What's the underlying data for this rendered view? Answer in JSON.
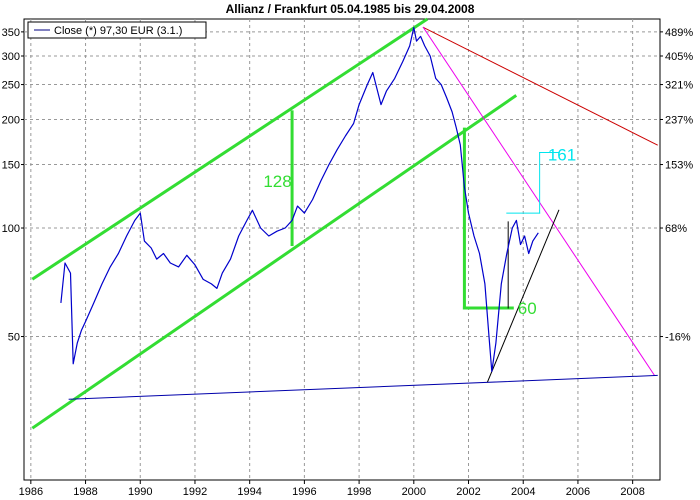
{
  "chart_data": {
    "type": "line",
    "title": "Allianz / Frankfurt 05.04.1985 bis 29.04.2008",
    "xlabel": "",
    "ylabel": "",
    "x_range": [
      1985.75,
      2009.0
    ],
    "ylim": [
      20,
      380
    ],
    "y_scale": "log",
    "x_ticks": [
      1986,
      1988,
      1990,
      1992,
      1994,
      1996,
      1998,
      2000,
      2002,
      2004,
      2006,
      2008
    ],
    "y_ticks_left": [
      50,
      100,
      150,
      200,
      250,
      300,
      350
    ],
    "y_ticks_right": [
      {
        "label": "489%",
        "value": 350
      },
      {
        "label": "405%",
        "value": 300
      },
      {
        "label": "321%",
        "value": 250
      },
      {
        "label": "237%",
        "value": 200
      },
      {
        "label": "153%",
        "value": 150
      },
      {
        "label": "68%",
        "value": 100
      },
      {
        "label": "-16%",
        "value": 50
      }
    ],
    "grid": true,
    "legend": {
      "position": "top-left",
      "entries": [
        {
          "label": "Close (*) 97,30 EUR (3.1.)",
          "color": "#000080"
        }
      ]
    },
    "colors": {
      "price": "#0000cc",
      "channel": "#33dd33",
      "trend_red": "#cc0000",
      "trend_magenta": "#ee00ee",
      "support_blue": "#0000aa",
      "cyan": "#00e5ee",
      "black": "#000000"
    },
    "series": [
      {
        "name": "Close (*) 97,30 EUR (3.1.)",
        "x": [
          1987.1,
          1987.25,
          1987.45,
          1987.55,
          1987.7,
          1987.85,
          1988.0,
          1988.3,
          1988.6,
          1988.9,
          1989.2,
          1989.5,
          1989.8,
          1990.0,
          1990.15,
          1990.4,
          1990.6,
          1990.85,
          1991.1,
          1991.4,
          1991.7,
          1992.0,
          1992.3,
          1992.6,
          1992.8,
          1993.0,
          1993.3,
          1993.6,
          1993.9,
          1994.1,
          1994.4,
          1994.7,
          1995.0,
          1995.3,
          1995.55,
          1995.75,
          1996.0,
          1996.3,
          1996.6,
          1996.9,
          1997.2,
          1997.5,
          1997.8,
          1998.0,
          1998.3,
          1998.5,
          1998.8,
          1999.0,
          1999.3,
          1999.6,
          1999.85,
          2000.0,
          2000.1,
          2000.25,
          2000.4,
          2000.6,
          2000.8,
          2001.0,
          2001.2,
          2001.4,
          2001.55,
          2001.7,
          2001.85,
          2002.0,
          2002.2,
          2002.4,
          2002.6,
          2002.75,
          2002.85,
          2003.0,
          2003.2,
          2003.4,
          2003.6,
          2003.75,
          2003.9,
          2004.05,
          2004.2,
          2004.35,
          2004.55
        ],
        "values": [
          62,
          80,
          75,
          42,
          48,
          52,
          55,
          62,
          70,
          78,
          85,
          95,
          105,
          110,
          92,
          88,
          82,
          85,
          80,
          78,
          84,
          79,
          72,
          70,
          68,
          75,
          82,
          95,
          105,
          112,
          100,
          95,
          98,
          100,
          105,
          115,
          110,
          120,
          135,
          150,
          165,
          180,
          195,
          220,
          250,
          270,
          220,
          240,
          260,
          290,
          320,
          360,
          330,
          340,
          320,
          300,
          260,
          250,
          230,
          210,
          190,
          170,
          130,
          110,
          95,
          85,
          70,
          50,
          40,
          48,
          70,
          85,
          100,
          105,
          90,
          95,
          85,
          92,
          97
        ]
      }
    ],
    "annotations": [
      {
        "text": "128",
        "x": 1994.5,
        "y": 135,
        "color": "#33dd33"
      },
      {
        "text": "60",
        "x": 2003.8,
        "y": 60,
        "color": "#33dd33"
      },
      {
        "text": "161",
        "x": 2004.9,
        "y": 160,
        "color": "#00e5ee"
      }
    ],
    "lines": [
      {
        "name": "channel-upper",
        "color": "#33dd33",
        "width": 3,
        "points": [
          [
            1986.1,
            72.5
          ],
          [
            2000.45,
            378
          ]
        ]
      },
      {
        "name": "channel-lower",
        "color": "#33dd33",
        "width": 3,
        "points": [
          [
            1986.1,
            28
          ],
          [
            2003.7,
            232
          ]
        ]
      },
      {
        "name": "channel-vertical",
        "color": "#33dd33",
        "width": 3,
        "points": [
          [
            1995.55,
            90
          ],
          [
            1995.55,
            210
          ]
        ]
      },
      {
        "name": "drop-vertical",
        "color": "#33dd33",
        "width": 3,
        "points": [
          [
            2001.85,
            188
          ],
          [
            2001.85,
            60
          ]
        ]
      },
      {
        "name": "drop-horizontal",
        "color": "#33dd33",
        "width": 3,
        "points": [
          [
            2001.85,
            60
          ],
          [
            2003.6,
            60
          ]
        ]
      },
      {
        "name": "rebound-vertical",
        "color": "#000000",
        "width": 1,
        "points": [
          [
            2003.45,
            60
          ],
          [
            2003.45,
            104
          ]
        ]
      },
      {
        "name": "red-trend",
        "color": "#cc0000",
        "width": 1,
        "points": [
          [
            2000.35,
            360
          ],
          [
            2008.9,
            170
          ]
        ]
      },
      {
        "name": "magenta-trend",
        "color": "#ee00ee",
        "width": 1,
        "points": [
          [
            2000.35,
            360
          ],
          [
            2008.8,
            39
          ]
        ]
      },
      {
        "name": "blue-support",
        "color": "#0000aa",
        "width": 1,
        "points": [
          [
            1987.4,
            33.5
          ],
          [
            2008.9,
            39
          ]
        ]
      },
      {
        "name": "black-uptrend",
        "color": "#000000",
        "width": 1,
        "points": [
          [
            2002.7,
            37.5
          ],
          [
            2005.3,
            112
          ]
        ]
      },
      {
        "name": "cyan-horizontal",
        "color": "#00e5ee",
        "width": 1,
        "points": [
          [
            2003.4,
            110
          ],
          [
            2004.6,
            110
          ]
        ]
      },
      {
        "name": "cyan-vertical",
        "color": "#00e5ee",
        "width": 1,
        "points": [
          [
            2004.6,
            110
          ],
          [
            2004.6,
            162
          ]
        ]
      },
      {
        "name": "cyan-top",
        "color": "#00e5ee",
        "width": 1,
        "points": [
          [
            2004.6,
            162
          ],
          [
            2005.3,
            162
          ]
        ]
      }
    ]
  }
}
